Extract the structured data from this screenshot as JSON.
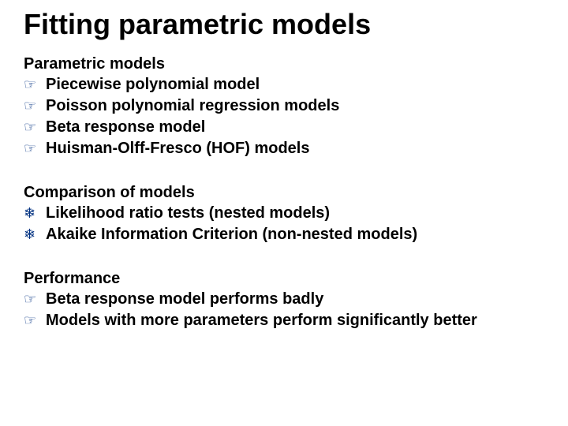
{
  "title": "Fitting parametric models",
  "colors": {
    "text": "#000000",
    "bullet": "#003080",
    "background": "#ffffff"
  },
  "typography": {
    "title_fontsize": 36,
    "subhead_fontsize": 20,
    "item_fontsize": 20,
    "bullet_fontsize": 18,
    "weight": "900"
  },
  "bullets": {
    "hand": "☞",
    "snow": "❄"
  },
  "section1": {
    "heading": "Parametric models",
    "items": [
      "Piecewise polynomial model",
      "Poisson polynomial regression models",
      "Beta response model",
      "Huisman-Olff-Fresco (HOF) models"
    ]
  },
  "section2": {
    "heading": "Comparison of models",
    "items": [
      "Likelihood ratio tests (nested models)",
      "Akaike Information Criterion (non-nested models)"
    ]
  },
  "section3": {
    "heading": "Performance",
    "items": [
      "Beta response model performs badly",
      "Models with more parameters perform significantly better"
    ]
  }
}
